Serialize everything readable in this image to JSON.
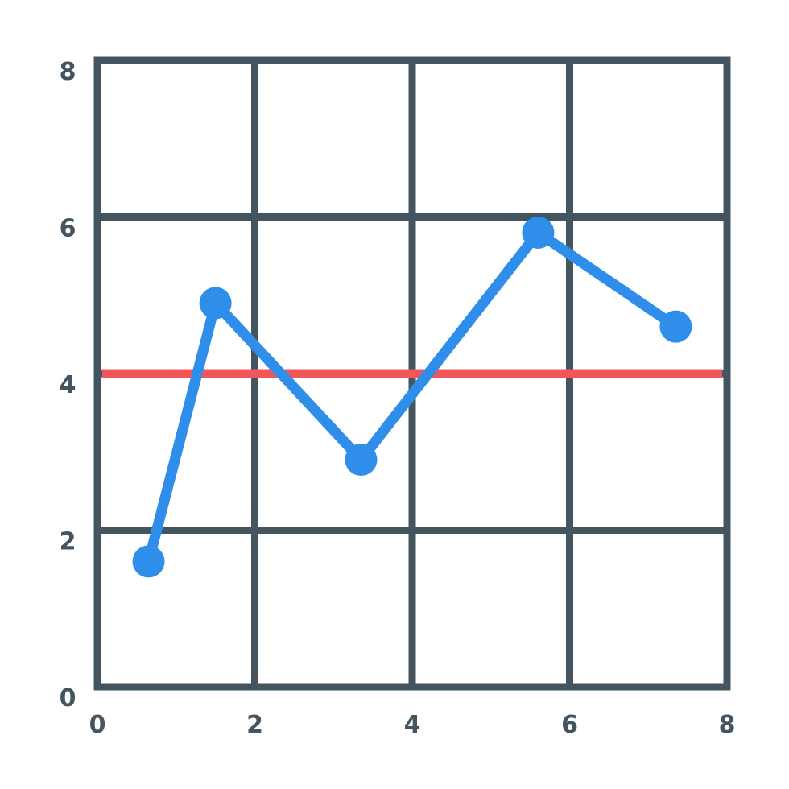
{
  "colors": {
    "grid": "#45555f",
    "series": "#2e8eea",
    "reference": "#f2555a",
    "background": "#ffffff",
    "tick_label": "#45555f"
  },
  "chart_data": {
    "type": "line",
    "title": "",
    "xlabel": "",
    "ylabel": "",
    "xlim": [
      0,
      8
    ],
    "ylim": [
      0,
      8
    ],
    "x_ticks": [
      "0",
      "2",
      "4",
      "6",
      "8"
    ],
    "y_ticks": [
      "0",
      "2",
      "4",
      "6",
      "8"
    ],
    "grid": true,
    "legend": "none",
    "series": [
      {
        "x": [
          0.65,
          1.5,
          3.35,
          5.6,
          7.35
        ],
        "y": [
          1.6,
          4.9,
          2.9,
          5.8,
          4.6
        ]
      }
    ],
    "reference_lines": [
      {
        "orientation": "horizontal",
        "value": 4.0
      }
    ]
  }
}
